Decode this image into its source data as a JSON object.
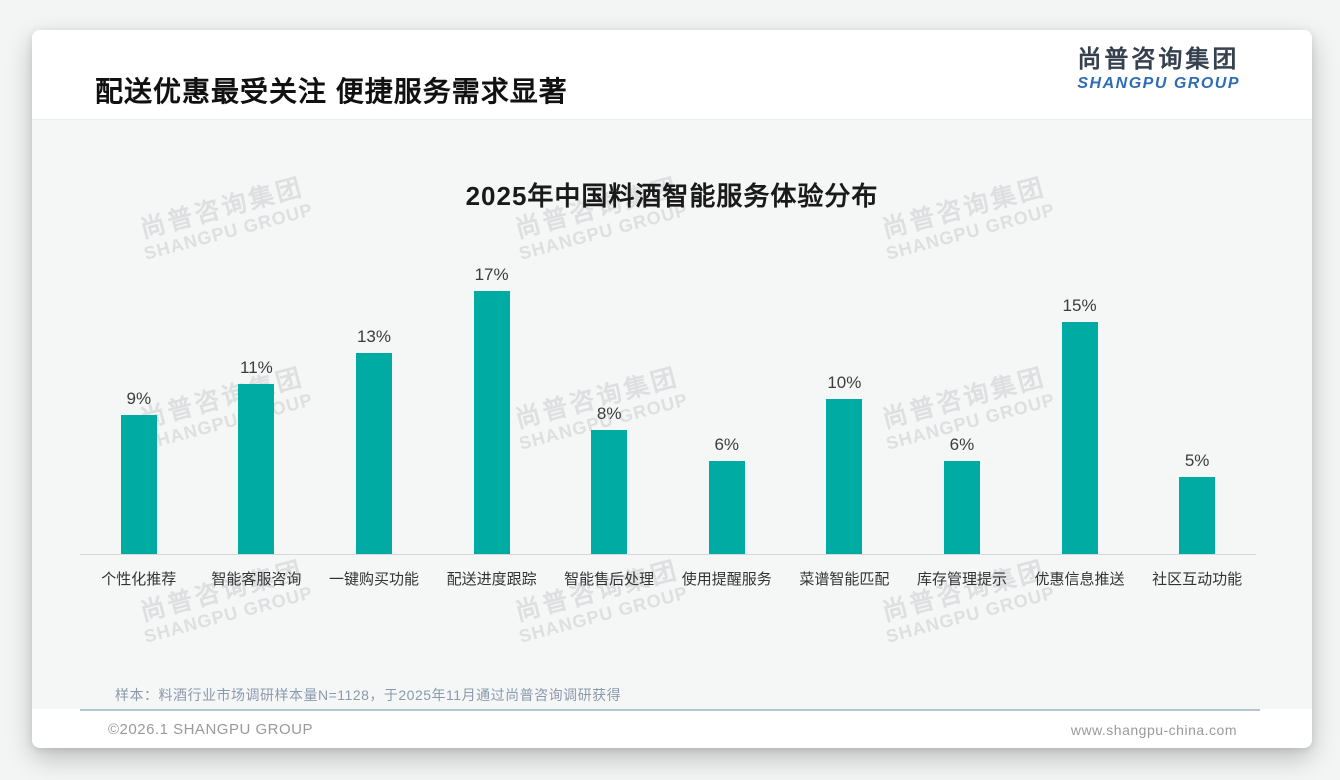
{
  "header": {
    "title": "配送优惠最受关注 便捷服务需求显著",
    "logo": {
      "cn": "尚普咨询集团",
      "en": "SHANGPU GROUP"
    }
  },
  "watermark": {
    "line1": "尚普咨询集团",
    "line2": "SHANGPU GROUP"
  },
  "note": "样本：料酒行业市场调研样本量N=1128，于2025年11月通过尚普咨询调研获得",
  "footer": {
    "left": "©2026.1 SHANGPU GROUP",
    "right": "www.shangpu-china.com"
  },
  "chart_data": {
    "type": "bar",
    "title": "2025年中国料酒智能服务体验分布",
    "categories": [
      "个性化推荐",
      "智能客服咨询",
      "一键购买功能",
      "配送进度跟踪",
      "智能售后处理",
      "使用提醒服务",
      "菜谱智能匹配",
      "库存管理提示",
      "优惠信息推送",
      "社区互动功能"
    ],
    "values": [
      9,
      11,
      13,
      17,
      8,
      6,
      10,
      6,
      15,
      5
    ],
    "data_labels": [
      "9%",
      "11%",
      "13%",
      "17%",
      "8%",
      "6%",
      "10%",
      "6%",
      "15%",
      "5%"
    ],
    "unit": "%",
    "bar_color": "#00ABA3",
    "ylim": [
      0,
      18
    ],
    "grid": false,
    "legend": "none",
    "xlabel": "",
    "ylabel": ""
  }
}
